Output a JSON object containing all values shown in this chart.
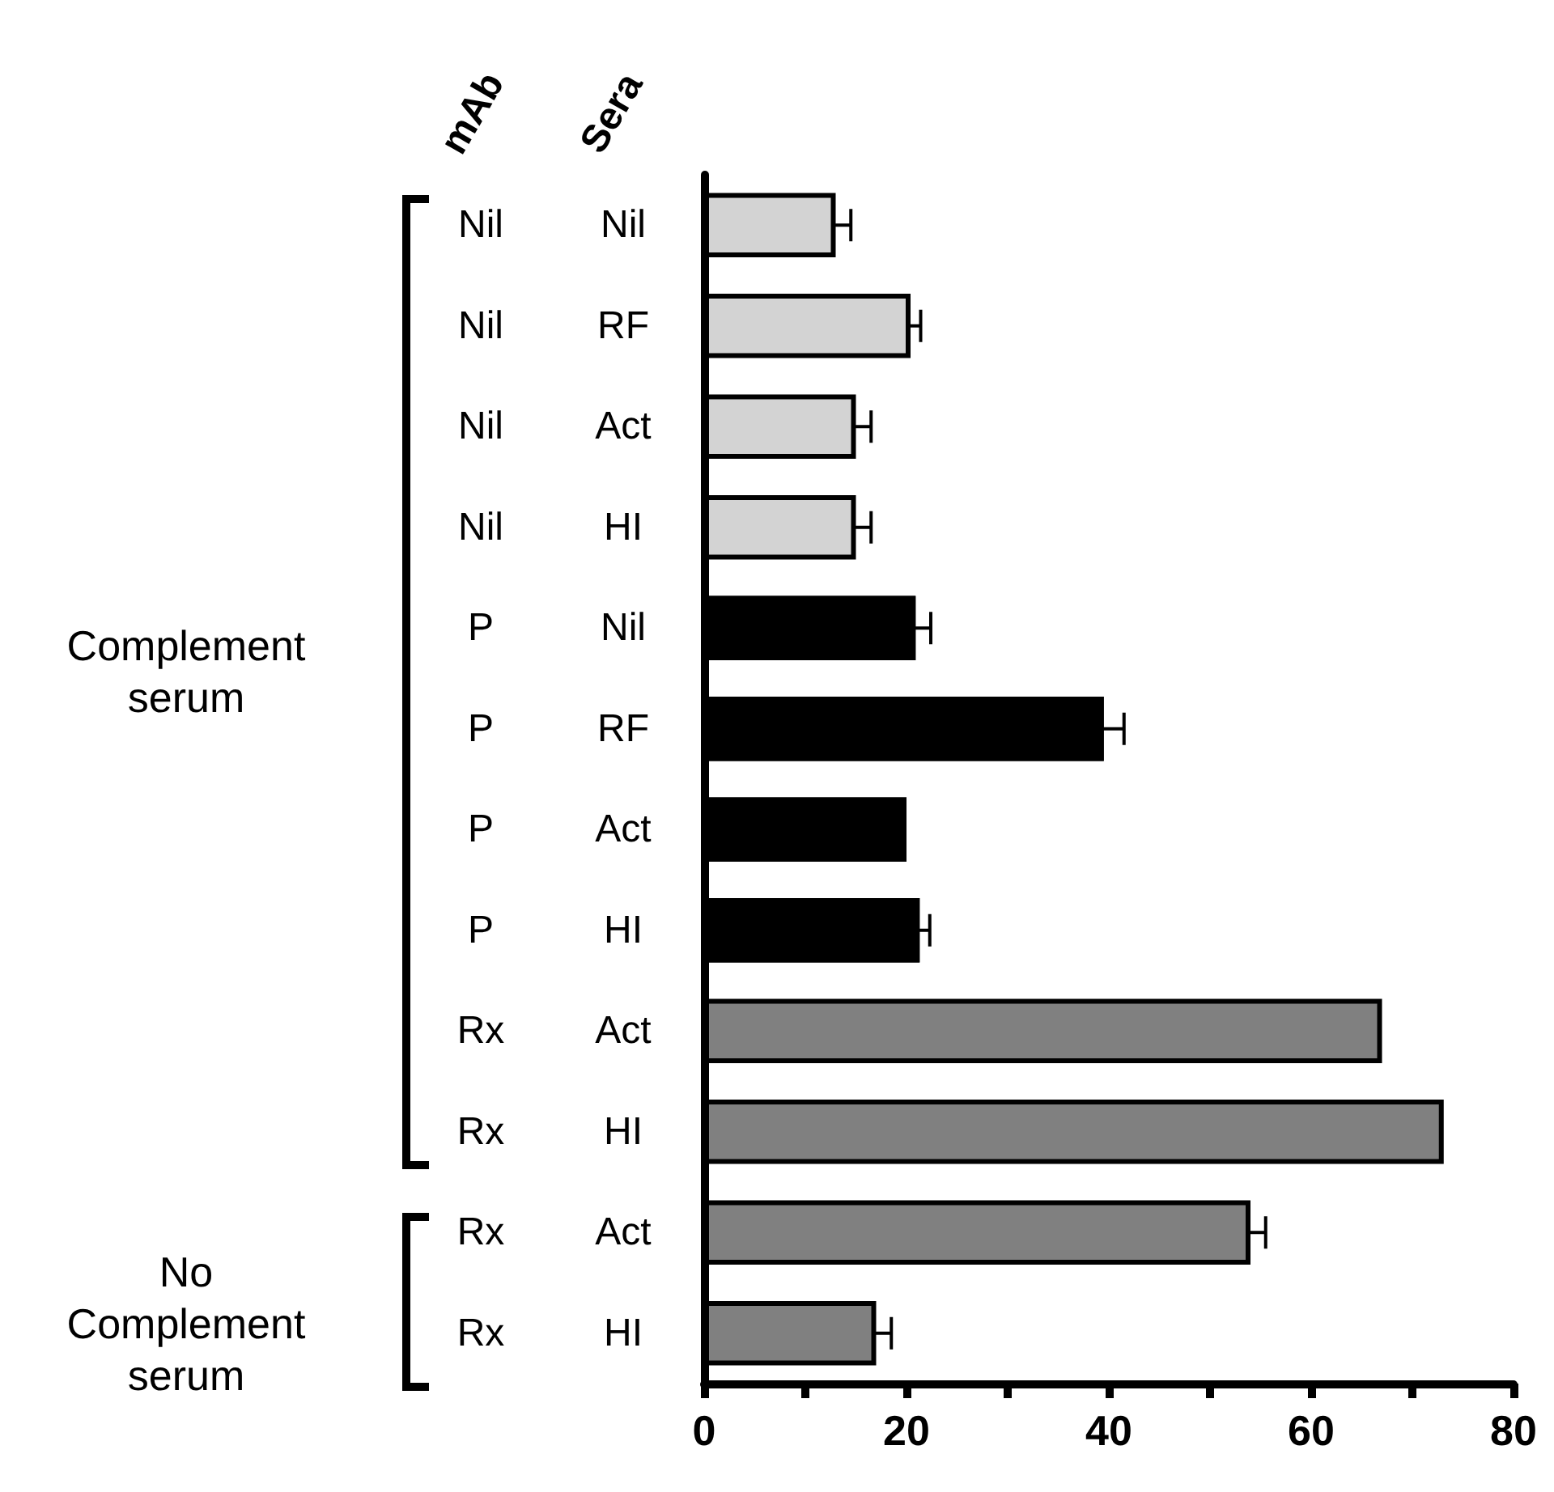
{
  "chart_data": {
    "type": "bar",
    "orientation": "horizontal",
    "categories": [
      "Nil Nil",
      "Nil RF",
      "Nil Act",
      "Nil HI",
      "P Nil",
      "P RF",
      "P Act",
      "P HI",
      "Rx Act",
      "Rx HI",
      "Rx Act",
      "Rx HI"
    ],
    "values": [
      13,
      20.4,
      15,
      15,
      20.9,
      39.5,
      20,
      21.3,
      67,
      73.1,
      54,
      17
    ],
    "errors": [
      1.5,
      1,
      1.5,
      1.5,
      1.5,
      2,
      null,
      1,
      null,
      null,
      1.5,
      1.5
    ],
    "colors": [
      "#d3d3d3",
      "#d3d3d3",
      "#d3d3d3",
      "#d3d3d3",
      "#000000",
      "#000000",
      "#000000",
      "#000000",
      "#808080",
      "#808080",
      "#808080",
      "#808080"
    ],
    "xlim": [
      0,
      80
    ],
    "xticks": [
      0,
      {
        "value": 10,
        "label": null
      },
      20,
      {
        "value": 30,
        "label": null
      },
      40,
      {
        "value": 50,
        "label": null
      },
      60,
      {
        "value": 70,
        "label": null
      },
      80
    ],
    "annotations": [
      "mAb",
      "Sera",
      "Complement\nserum",
      "No\nComplement\nserum"
    ],
    "grid": false
  }
}
